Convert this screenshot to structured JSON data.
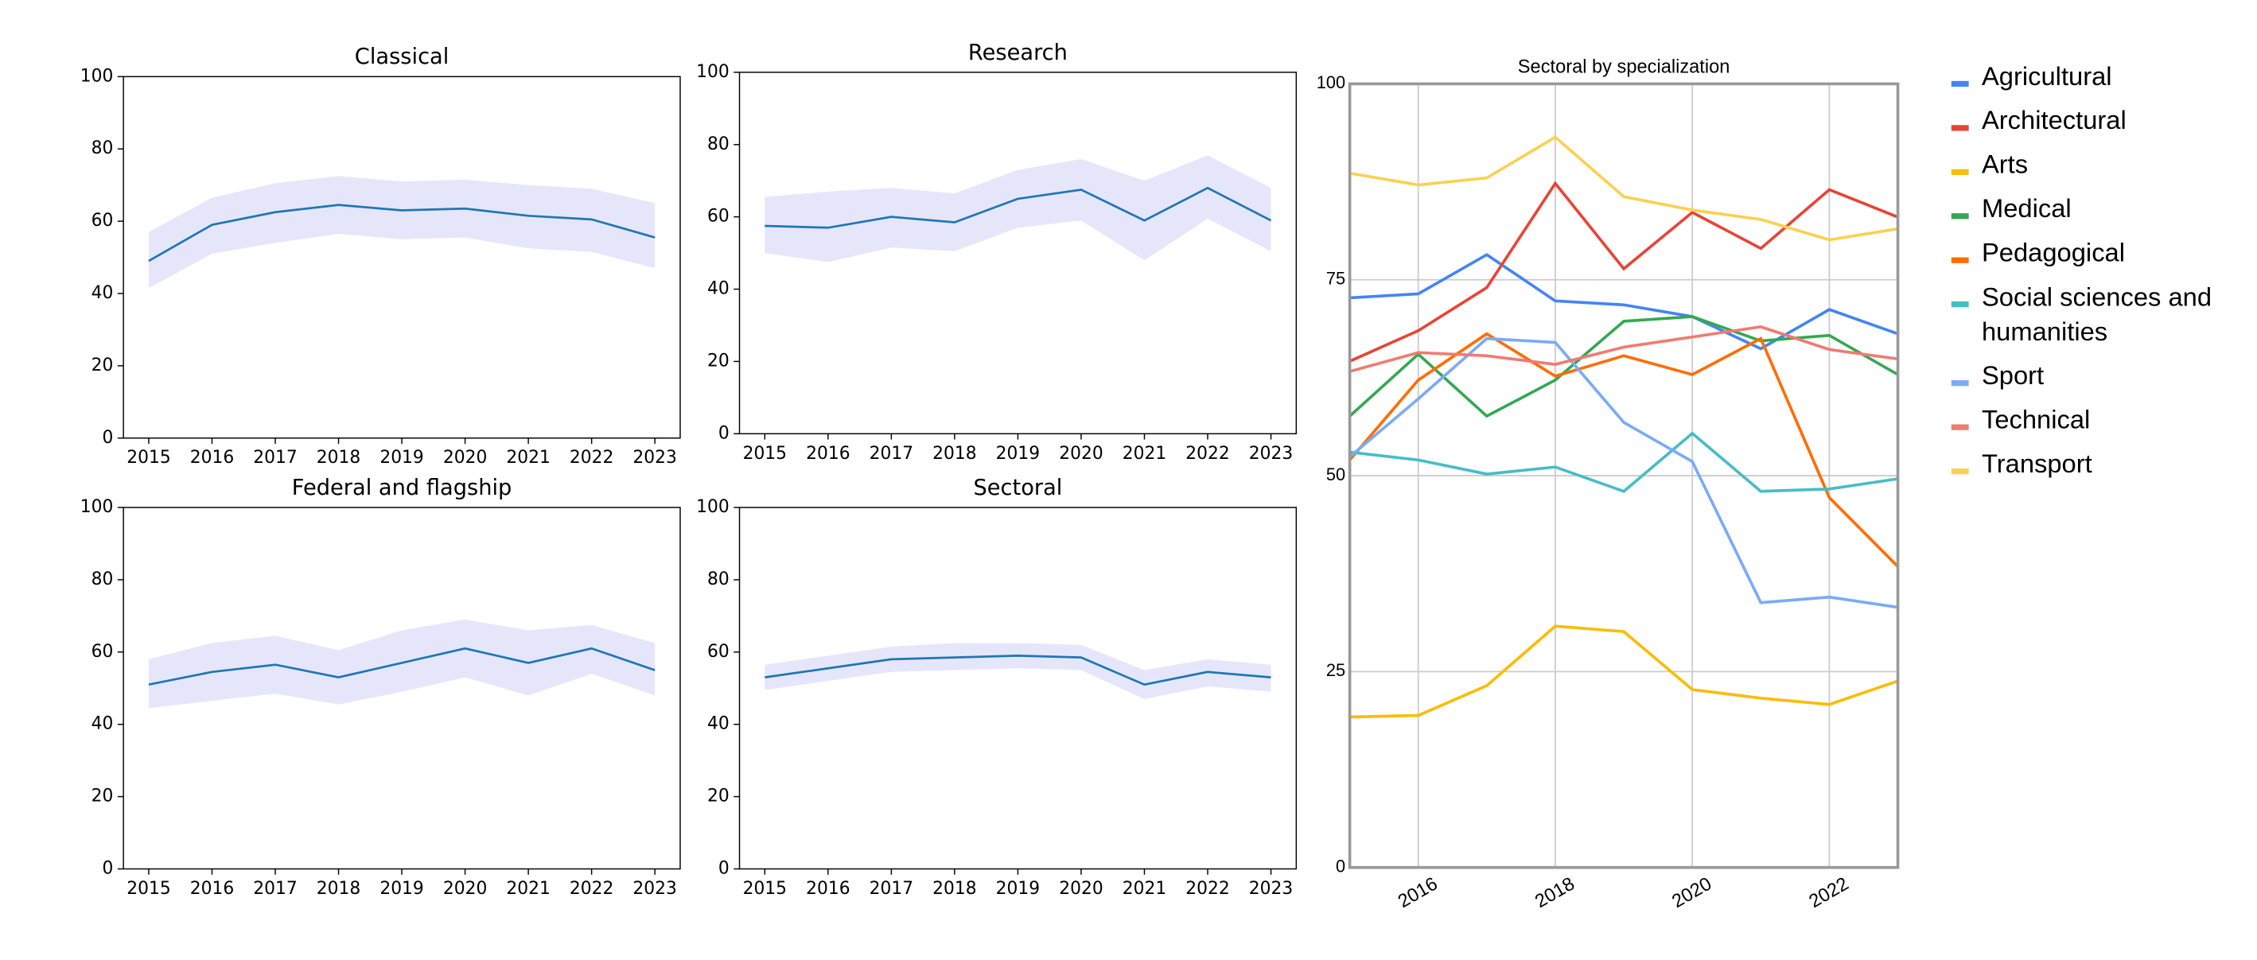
{
  "chart_data": [
    {
      "type": "line",
      "title": "Classical",
      "x": [
        2015,
        2016,
        2017,
        2018,
        2019,
        2020,
        2021,
        2022,
        2023
      ],
      "values": [
        49,
        59,
        62.5,
        64.5,
        63,
        63.5,
        61.5,
        60.5,
        55.5
      ],
      "upper": [
        57,
        66.5,
        70.5,
        72.5,
        71,
        71.5,
        70,
        69,
        65
      ],
      "lower": [
        41.5,
        51,
        54,
        56.5,
        55,
        55.5,
        52.5,
        51.5,
        47
      ],
      "color": "#1f77b4",
      "band_color": "#dcdcfa",
      "xlim": [
        2014.6,
        2023.4
      ],
      "xticks": [
        2015,
        2016,
        2017,
        2018,
        2019,
        2020,
        2021,
        2022,
        2023
      ],
      "ylim": [
        0,
        100
      ],
      "yticks": [
        0,
        20,
        40,
        60,
        80,
        100
      ],
      "grid": false
    },
    {
      "type": "line",
      "title": "Research",
      "x": [
        2015,
        2016,
        2017,
        2018,
        2019,
        2020,
        2021,
        2022,
        2023
      ],
      "values": [
        57.5,
        57,
        60,
        58.5,
        65,
        67.5,
        59,
        68,
        59
      ],
      "upper": [
        65.5,
        67,
        68,
        66.5,
        73,
        76,
        70,
        77,
        68
      ],
      "lower": [
        50,
        47.5,
        51.5,
        50.5,
        57,
        59,
        48,
        59.5,
        50.5
      ],
      "color": "#1f77b4",
      "band_color": "#dcdcfa",
      "xlim": [
        2014.6,
        2023.4
      ],
      "xticks": [
        2015,
        2016,
        2017,
        2018,
        2019,
        2020,
        2021,
        2022,
        2023
      ],
      "ylim": [
        0,
        100
      ],
      "yticks": [
        0,
        20,
        40,
        60,
        80,
        100
      ],
      "grid": false
    },
    {
      "type": "line",
      "title": "Federal and flagship",
      "x": [
        2015,
        2016,
        2017,
        2018,
        2019,
        2020,
        2021,
        2022,
        2023
      ],
      "values": [
        51,
        54.5,
        56.5,
        53,
        57,
        61,
        57,
        61,
        55
      ],
      "upper": [
        58,
        62.5,
        64.5,
        60.5,
        66,
        69,
        66,
        67.5,
        62.5
      ],
      "lower": [
        44.5,
        46.5,
        48.5,
        45.5,
        49,
        53,
        48,
        54,
        48
      ],
      "color": "#1f77b4",
      "band_color": "#dcdcfa",
      "xlim": [
        2014.6,
        2023.4
      ],
      "xticks": [
        2015,
        2016,
        2017,
        2018,
        2019,
        2020,
        2021,
        2022,
        2023
      ],
      "ylim": [
        0,
        100
      ],
      "yticks": [
        0,
        20,
        40,
        60,
        80,
        100
      ],
      "grid": false
    },
    {
      "type": "line",
      "title": "Sectoral",
      "x": [
        2015,
        2016,
        2017,
        2018,
        2019,
        2020,
        2021,
        2022,
        2023
      ],
      "values": [
        53,
        55.5,
        58,
        58.5,
        59,
        58.5,
        51,
        54.5,
        53
      ],
      "upper": [
        56.5,
        59,
        61.5,
        62.5,
        62.5,
        62,
        55,
        58,
        56.5
      ],
      "lower": [
        49.5,
        52,
        54.5,
        55,
        55.5,
        55,
        47,
        50.5,
        49
      ],
      "color": "#1f77b4",
      "band_color": "#dcdcfa",
      "xlim": [
        2014.6,
        2023.4
      ],
      "xticks": [
        2015,
        2016,
        2017,
        2018,
        2019,
        2020,
        2021,
        2022,
        2023
      ],
      "ylim": [
        0,
        100
      ],
      "yticks": [
        0,
        20,
        40,
        60,
        80,
        100
      ],
      "grid": false
    },
    {
      "type": "line",
      "title": "Sectoral by specialization",
      "x": [
        2015,
        2016,
        2017,
        2018,
        2019,
        2020,
        2021,
        2022,
        2023
      ],
      "series": [
        {
          "name": "Agricultural",
          "color": "#4285f4",
          "values": [
            72.7,
            73.2,
            78.2,
            72.3,
            71.8,
            70.3,
            66.2,
            71.2,
            68.1
          ]
        },
        {
          "name": "Architectural",
          "color": "#ea4335",
          "values": [
            64.6,
            68.5,
            74,
            87.3,
            76.4,
            83.6,
            79,
            86.5,
            83
          ]
        },
        {
          "name": "Arts",
          "color": "#fbbc04",
          "values": [
            19.2,
            19.4,
            23.2,
            30.8,
            30.1,
            22.7,
            21.6,
            20.8,
            23.8
          ]
        },
        {
          "name": "Medical",
          "color": "#34a853",
          "values": [
            57.6,
            65.5,
            57.6,
            62.2,
            69.7,
            70.3,
            67.2,
            67.9,
            62.9
          ]
        },
        {
          "name": "Pedagogical",
          "color": "#ff6d01",
          "values": [
            52,
            62.2,
            68.1,
            62.7,
            65.3,
            62.9,
            67.5,
            47.2,
            38.4
          ]
        },
        {
          "name": "Social sciences and humanities",
          "color": "#46bdc6",
          "values": [
            53,
            52,
            50.2,
            51.1,
            48,
            55.4,
            48,
            48.3,
            49.6
          ]
        },
        {
          "name": "Sport",
          "color": "#7baaf7",
          "values": [
            52.4,
            59.8,
            67.5,
            67,
            56.8,
            51.8,
            33.8,
            34.5,
            33.2
          ]
        },
        {
          "name": "Technical",
          "color": "#f07b72",
          "values": [
            63.3,
            65.7,
            65.3,
            64.2,
            66.4,
            67.7,
            69,
            66.1,
            64.9
          ]
        },
        {
          "name": "Transport",
          "color": "#fcd04f",
          "values": [
            88.6,
            87.1,
            88,
            93.2,
            85.6,
            83.9,
            82.7,
            80.1,
            81.5
          ]
        }
      ],
      "xlim": [
        2015,
        2023
      ],
      "xticks": [
        2016,
        2018,
        2020,
        2022
      ],
      "ylim": [
        0,
        100
      ],
      "yticks": [
        0,
        25,
        50,
        75,
        100
      ],
      "grid": true,
      "legend": "right"
    }
  ]
}
